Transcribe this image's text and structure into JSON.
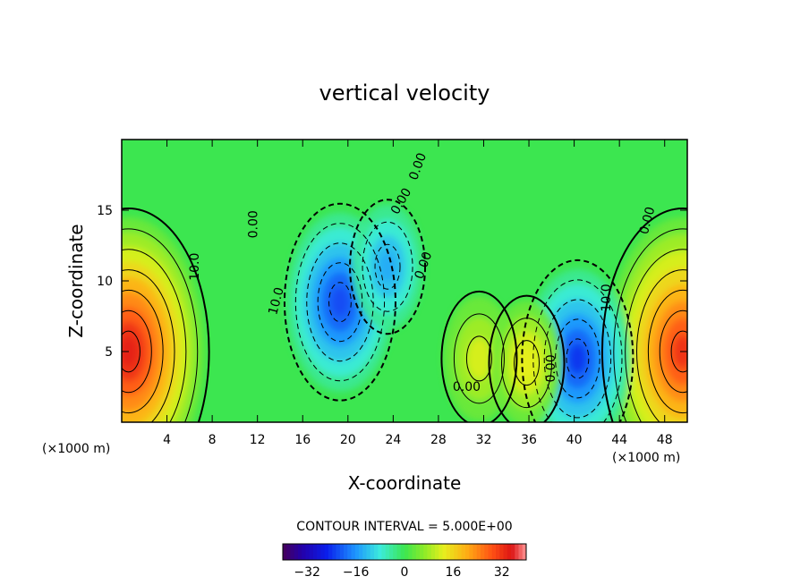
{
  "chart_data": {
    "type": "heatmap",
    "subtype": "filled-contour",
    "title": "vertical velocity",
    "xlabel": "X-coordinate",
    "ylabel": "Z-coordinate",
    "x_unit": "(×1000 m)",
    "xlim": [
      0,
      50
    ],
    "ylim": [
      0,
      20
    ],
    "x_ticks": [
      4,
      8,
      12,
      16,
      20,
      24,
      28,
      32,
      36,
      40,
      44,
      48
    ],
    "y_ticks": [
      5,
      10,
      15
    ],
    "contour_interval_label": "CONTOUR INTERVAL = 5.000E+00",
    "contour_interval": 5,
    "contour_labels": [
      "0.00",
      "10.0",
      "0.00",
      "10.0",
      "0.00",
      "0.00",
      "0.00",
      "10.0",
      "0.00",
      "0.00"
    ],
    "colorbar": {
      "range": [
        -40,
        40
      ],
      "ticks": [
        -32,
        -16,
        0,
        16,
        32
      ],
      "colormap": "rainbow"
    },
    "features": [
      {
        "kind": "updraft",
        "x": 0.6,
        "z": 5.0,
        "peak": 34
      },
      {
        "kind": "updraft",
        "x": 49.6,
        "z": 5.0,
        "peak": 32
      },
      {
        "kind": "downdraft",
        "x": 19.3,
        "z": 8.5,
        "peak": -22
      },
      {
        "kind": "downdraft",
        "x": 23.5,
        "z": 11.0,
        "peak": -14
      },
      {
        "kind": "downdraft",
        "x": 40.3,
        "z": 4.5,
        "peak": -24
      },
      {
        "kind": "updraft",
        "x": 31.6,
        "z": 4.5,
        "peak": 12
      },
      {
        "kind": "updraft",
        "x": 35.8,
        "z": 4.2,
        "peak": 13
      }
    ]
  }
}
